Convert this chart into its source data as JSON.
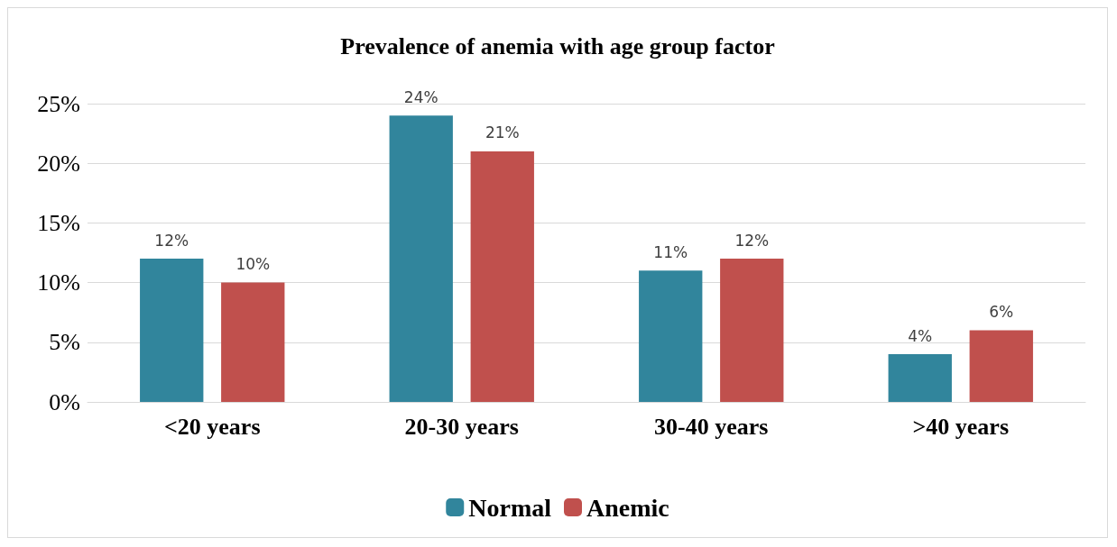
{
  "chart_data": {
    "type": "bar",
    "title": "Prevalence of anemia with age group factor",
    "categories": [
      "<20 years",
      "20-30 years",
      "30-40 years",
      ">40 years"
    ],
    "series": [
      {
        "name": "Normal",
        "color": "#31859c",
        "values": [
          12,
          24,
          11,
          4
        ],
        "value_labels": [
          "12%",
          "24%",
          "11%",
          "4%"
        ]
      },
      {
        "name": "Anemic",
        "color": "#c0504d",
        "values": [
          10,
          21,
          12,
          6
        ],
        "value_labels": [
          "10%",
          "21%",
          "12%",
          "6%"
        ]
      }
    ],
    "ylim": [
      0,
      25
    ],
    "yticks": [
      {
        "value": 0,
        "label": "0%"
      },
      {
        "value": 5,
        "label": "5%"
      },
      {
        "value": 10,
        "label": "10%"
      },
      {
        "value": 15,
        "label": "15%"
      },
      {
        "value": 20,
        "label": "20%"
      },
      {
        "value": 25,
        "label": "25%"
      }
    ],
    "grid": "y",
    "legend": "bottom"
  }
}
